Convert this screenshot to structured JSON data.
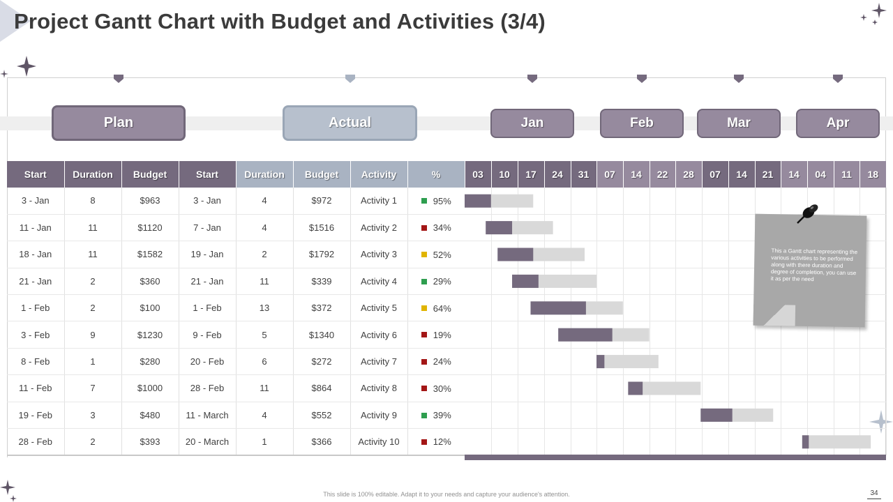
{
  "title": "Project Gantt Chart with Budget and Activities (3/4)",
  "groups": {
    "plan": "Plan",
    "actual": "Actual"
  },
  "months": [
    "Jan",
    "Feb",
    "Mar",
    "Apr"
  ],
  "headers": {
    "plan": [
      "Start",
      "Duration",
      "Budget"
    ],
    "actual": [
      "Start",
      "Duration",
      "Budget",
      "Activity",
      "%"
    ]
  },
  "colors": {
    "plan": "#756a7e",
    "actual": "#a9b3c2",
    "bar_done": "#756a7e",
    "bar_remaining": "#d9d9d9",
    "status_green": "#2e9e4f",
    "status_red": "#a31616",
    "status_yellow": "#e0b400"
  },
  "chart_data": {
    "type": "gantt",
    "title": "Project Gantt Chart with Budget and Activities (3/4)",
    "week_columns": [
      {
        "label": "03",
        "month": "Jan"
      },
      {
        "label": "10",
        "month": "Jan"
      },
      {
        "label": "17",
        "month": "Jan"
      },
      {
        "label": "24",
        "month": "Jan"
      },
      {
        "label": "31",
        "month": "Jan"
      },
      {
        "label": "07",
        "month": "Feb"
      },
      {
        "label": "14",
        "month": "Feb"
      },
      {
        "label": "22",
        "month": "Feb"
      },
      {
        "label": "28",
        "month": "Feb"
      },
      {
        "label": "07",
        "month": "Mar"
      },
      {
        "label": "14",
        "month": "Mar"
      },
      {
        "label": "21",
        "month": "Mar"
      },
      {
        "label": "14",
        "month": "Apr"
      },
      {
        "label": "04",
        "month": "Apr"
      },
      {
        "label": "11",
        "month": "Apr"
      },
      {
        "label": "18",
        "month": "Apr"
      }
    ],
    "rows": [
      {
        "plan_start": "3 - Jan",
        "plan_duration": "8",
        "plan_budget": "$963",
        "actual_start": "3 - Jan",
        "actual_duration": "4",
        "actual_budget": "$972",
        "activity": "Activity 1",
        "percent": "95%",
        "status": "green",
        "bar_start": 0.0,
        "bar_done": 1.0,
        "bar_total": 2.6
      },
      {
        "plan_start": "11 -  Jan",
        "plan_duration": "11",
        "plan_budget": "$1120",
        "actual_start": "7 - Jan",
        "actual_duration": "4",
        "actual_budget": "$1516",
        "activity": "Activity 2",
        "percent": "34%",
        "status": "red",
        "bar_start": 0.8,
        "bar_done": 1.0,
        "bar_total": 2.55
      },
      {
        "plan_start": "18 - Jan",
        "plan_duration": "11",
        "plan_budget": "$1582",
        "actual_start": "19 - Jan",
        "actual_duration": "2",
        "actual_budget": "$1792",
        "activity": "Activity 3",
        "percent": "52%",
        "status": "yellow",
        "bar_start": 1.25,
        "bar_done": 1.35,
        "bar_total": 3.3
      },
      {
        "plan_start": "21 - Jan",
        "plan_duration": "2",
        "plan_budget": "$360",
        "actual_start": "21 - Jan",
        "actual_duration": "11",
        "actual_budget": "$339",
        "activity": "Activity 4",
        "percent": "29%",
        "status": "green",
        "bar_start": 1.8,
        "bar_done": 1.0,
        "bar_total": 3.2
      },
      {
        "plan_start": "1 - Feb",
        "plan_duration": "2",
        "plan_budget": "$100",
        "actual_start": "1 - Feb",
        "actual_duration": "13",
        "actual_budget": "$372",
        "activity": "Activity 5",
        "percent": "64%",
        "status": "yellow",
        "bar_start": 2.5,
        "bar_done": 2.1,
        "bar_total": 3.5
      },
      {
        "plan_start": "3 - Feb",
        "plan_duration": "9",
        "plan_budget": "$1230",
        "actual_start": "9 - Feb",
        "actual_duration": "5",
        "actual_budget": "$1340",
        "activity": "Activity 6",
        "percent": "19%",
        "status": "red",
        "bar_start": 3.55,
        "bar_done": 2.05,
        "bar_total": 3.45
      },
      {
        "plan_start": "8 - Feb",
        "plan_duration": "1",
        "plan_budget": "$280",
        "actual_start": "20 - Feb",
        "actual_duration": "6",
        "actual_budget": "$272",
        "activity": "Activity 7",
        "percent": "24%",
        "status": "red",
        "bar_start": 5.0,
        "bar_done": 0.3,
        "bar_total": 2.35
      },
      {
        "plan_start": "11 - Feb",
        "plan_duration": "7",
        "plan_budget": "$1000",
        "actual_start": "28 - Feb",
        "actual_duration": "11",
        "actual_budget": "$864",
        "activity": "Activity 8",
        "percent": "30%",
        "status": "red",
        "bar_start": 6.2,
        "bar_done": 0.55,
        "bar_total": 2.75
      },
      {
        "plan_start": "19 - Feb",
        "plan_duration": "3",
        "plan_budget": "$480",
        "actual_start": "11 - March",
        "actual_duration": "4",
        "actual_budget": "$552",
        "activity": "Activity 9",
        "percent": "39%",
        "status": "green",
        "bar_start": 8.95,
        "bar_done": 1.2,
        "bar_total": 2.75
      },
      {
        "plan_start": "28 - Feb",
        "plan_duration": "2",
        "plan_budget": "$393",
        "actual_start": "20 - March",
        "actual_duration": "1",
        "actual_budget": "$366",
        "activity": "Activity 10",
        "percent": "12%",
        "status": "red",
        "bar_start": 12.8,
        "bar_done": 0.25,
        "bar_total": 2.6
      }
    ]
  },
  "note": "This a Gantt chart representing the various activities to be performed along with there duration  and degree of completion, you can use it as per the need",
  "footer": "This slide is 100% editable. Adapt it to your needs and capture your audience's attention.",
  "page_number": "34"
}
